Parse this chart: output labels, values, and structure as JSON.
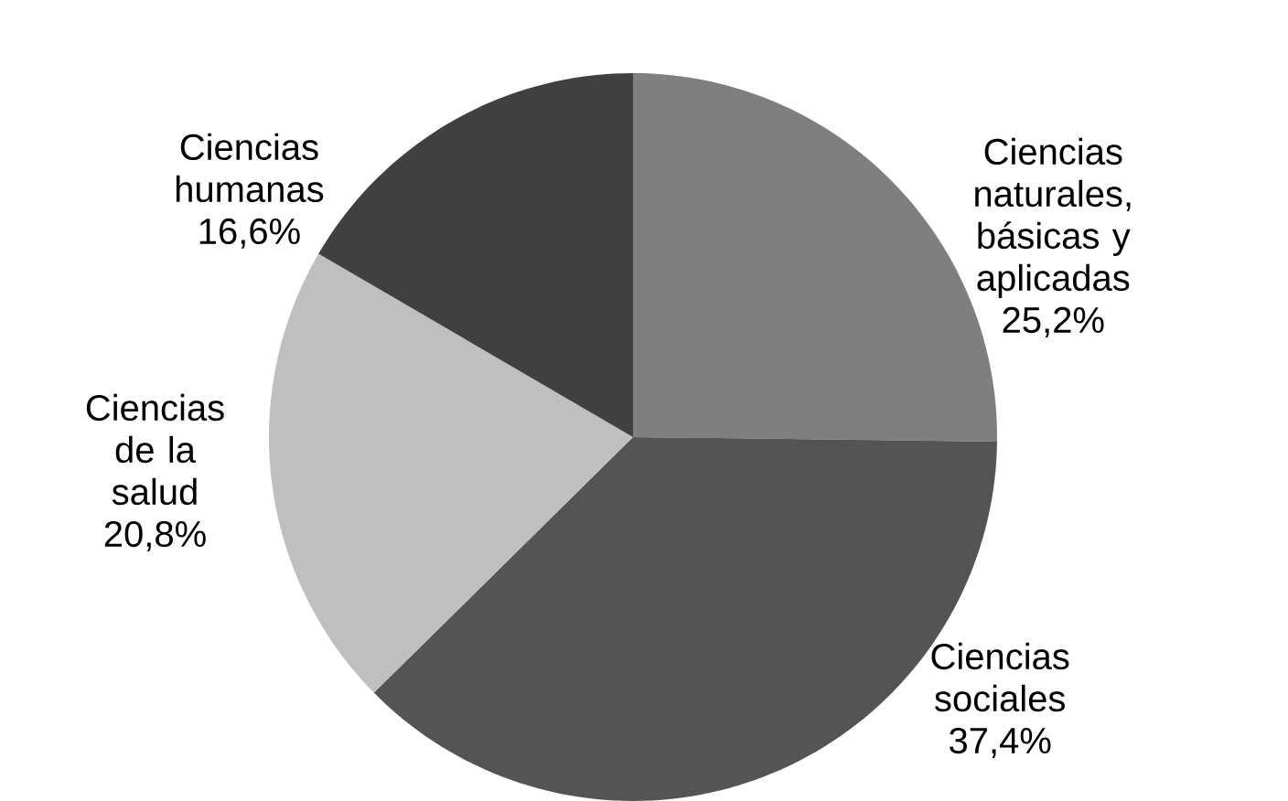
{
  "chart_data": {
    "type": "pie",
    "categories": [
      "Ciencias naturales, básicas y aplicadas",
      "Ciencias sociales",
      "Ciencias de la salud",
      "Ciencias humanas"
    ],
    "values": [
      25.2,
      37.4,
      20.8,
      16.6
    ],
    "value_labels": [
      "25,2%",
      "37,4%",
      "20,8%",
      "16,6%"
    ],
    "colors": [
      "#7f7f7f",
      "#545454",
      "#bfbfbf",
      "#404040"
    ]
  }
}
